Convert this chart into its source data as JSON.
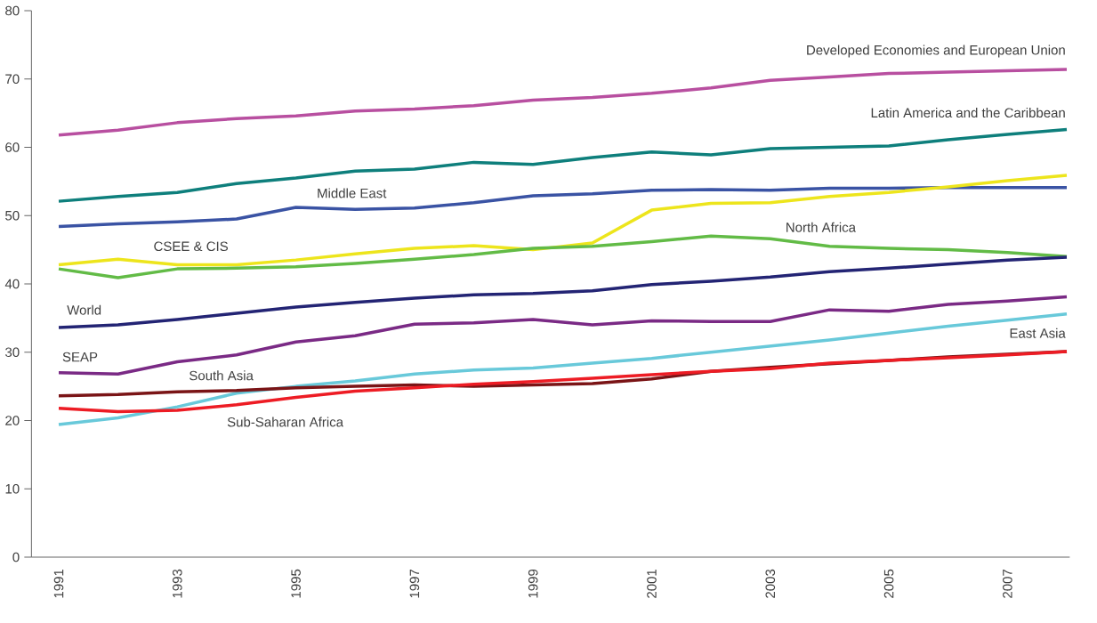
{
  "chart_data": {
    "type": "line",
    "marker": "none",
    "categories": [
      "1991",
      null,
      "1993",
      null,
      "1995",
      null,
      "1997",
      null,
      "1999",
      null,
      "2001",
      null,
      "2003",
      null,
      "2005",
      null,
      "2007",
      null
    ],
    "ylim": [
      0,
      80
    ],
    "yticks": [
      0,
      10,
      20,
      30,
      40,
      50,
      60,
      70,
      80
    ],
    "series": [
      {
        "name": "Developed Economies and European Union",
        "color": "#b84fa0",
        "values": [
          61.8,
          62.5,
          63.6,
          64.2,
          64.6,
          65.3,
          65.6,
          66.1,
          66.9,
          67.3,
          67.9,
          68.7,
          69.8,
          70.3,
          70.8,
          71.0,
          71.2,
          71.4
        ]
      },
      {
        "name": "Latin America and the Caribbean",
        "color": "#0e7f7c",
        "values": [
          52.1,
          52.8,
          53.4,
          54.7,
          55.5,
          56.5,
          56.8,
          57.8,
          57.5,
          58.5,
          59.3,
          58.9,
          59.8,
          60.0,
          60.2,
          61.1,
          61.9,
          62.6
        ]
      },
      {
        "name": "Middle East",
        "color": "#3a53a4",
        "values": [
          48.4,
          48.8,
          49.1,
          49.5,
          51.2,
          50.9,
          51.1,
          51.9,
          52.9,
          53.2,
          53.7,
          53.8,
          53.7,
          54.0,
          54.0,
          54.1,
          54.1,
          54.1
        ]
      },
      {
        "name": "CSEE & CIS",
        "color": "#ede51c",
        "values": [
          42.8,
          43.6,
          42.8,
          42.8,
          43.5,
          44.4,
          45.2,
          45.6,
          45.0,
          46.0,
          50.8,
          51.8,
          51.9,
          52.8,
          53.4,
          54.2,
          55.1,
          55.9
        ]
      },
      {
        "name": "North Africa",
        "color": "#62bb46",
        "values": [
          42.2,
          40.9,
          42.2,
          42.3,
          42.5,
          43.0,
          43.6,
          44.3,
          45.2,
          45.5,
          46.2,
          47.0,
          46.6,
          45.5,
          45.2,
          45.0,
          44.6,
          44.0
        ]
      },
      {
        "name": "World",
        "color": "#232474",
        "values": [
          33.6,
          34.0,
          34.8,
          35.7,
          36.6,
          37.3,
          37.9,
          38.4,
          38.6,
          39.0,
          39.9,
          40.4,
          41.0,
          41.8,
          42.3,
          42.9,
          43.5,
          43.9
        ]
      },
      {
        "name": "SEAP",
        "color": "#7a2a85",
        "values": [
          27.0,
          26.8,
          28.6,
          29.6,
          31.5,
          32.4,
          34.1,
          34.3,
          34.8,
          34.0,
          34.6,
          34.5,
          34.5,
          36.2,
          36.0,
          37.0,
          37.5,
          38.1
        ]
      },
      {
        "name": "East Asia",
        "color": "#68c9da",
        "values": [
          19.4,
          20.4,
          22.0,
          24.0,
          25.0,
          25.8,
          26.8,
          27.4,
          27.7,
          28.4,
          29.1,
          30.0,
          30.9,
          31.8,
          32.8,
          33.8,
          34.7,
          35.6
        ]
      },
      {
        "name": "South Asia",
        "color": "#7a1416",
        "values": [
          23.6,
          23.8,
          24.2,
          24.4,
          24.8,
          25.0,
          25.2,
          25.0,
          25.2,
          25.4,
          26.1,
          27.2,
          27.8,
          28.3,
          28.8,
          29.3,
          29.7,
          30.1
        ]
      },
      {
        "name": "Sub-Saharan Africa",
        "color": "#ed1c24",
        "values": [
          21.8,
          21.3,
          21.5,
          22.3,
          23.4,
          24.3,
          24.8,
          25.3,
          25.7,
          26.2,
          26.7,
          27.2,
          27.6,
          28.4,
          28.8,
          29.2,
          29.6,
          30.1
        ]
      }
    ]
  }
}
